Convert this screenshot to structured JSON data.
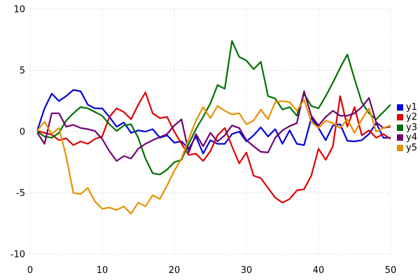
{
  "figure": {
    "background": "#ffffff"
  },
  "chart_data": {
    "type": "line",
    "title": "",
    "xlabel": "",
    "ylabel": "",
    "xlim": [
      0,
      50
    ],
    "ylim": [
      -10,
      10
    ],
    "x_ticks": [
      0,
      10,
      20,
      30,
      40,
      50
    ],
    "y_ticks": [
      10,
      5,
      0,
      -5,
      -10
    ],
    "x_tick_labels": [
      "0",
      "10",
      "20",
      "30",
      "40",
      "50"
    ],
    "y_tick_labels": [
      "10",
      "5",
      "0",
      "-5",
      "-10"
    ],
    "grid": true,
    "grid_style": "dotted",
    "grid_color": "#c4c4c4",
    "legend_position": "right-outside",
    "x": [
      1,
      2,
      3,
      4,
      5,
      6,
      7,
      8,
      9,
      10,
      11,
      12,
      13,
      14,
      15,
      16,
      17,
      18,
      19,
      20,
      21,
      22,
      23,
      24,
      25,
      26,
      27,
      28,
      29,
      30,
      31,
      32,
      33,
      34,
      35,
      36,
      37,
      38,
      39,
      40,
      41,
      42,
      43,
      44,
      45,
      46,
      47,
      48,
      49,
      50
    ],
    "series": [
      {
        "name": "y1",
        "color": "#0000dd",
        "values": [
          0.1,
          1.9,
          3.1,
          2.5,
          2.9,
          3.4,
          3.3,
          2.2,
          1.9,
          1.9,
          1.2,
          0.4,
          0.75,
          -0.1,
          0.1,
          0.0,
          0.2,
          -0.5,
          -0.3,
          -0.9,
          -0.8,
          -1.4,
          -0.4,
          -1.8,
          -0.7,
          -1.0,
          -1.0,
          -0.2,
          0.0,
          -0.8,
          -0.3,
          0.35,
          -0.4,
          0.2,
          -1.0,
          0.1,
          -1.0,
          -1.1,
          1.1,
          0.3,
          -0.7,
          0.5,
          0.6,
          -0.75,
          -0.8,
          -0.7,
          -0.2,
          0.7,
          -0.5,
          -0.5
        ]
      },
      {
        "name": "y2",
        "color": "#dd0000",
        "values": [
          0.05,
          -0.1,
          -0.25,
          -0.7,
          -0.55,
          -1.1,
          -0.8,
          -1.0,
          -0.6,
          -0.4,
          1.2,
          1.9,
          1.6,
          1.0,
          2.2,
          3.2,
          1.5,
          1.1,
          1.2,
          0.0,
          -1.0,
          -1.9,
          -1.8,
          -2.4,
          -1.6,
          -0.3,
          0.3,
          -1.2,
          -2.6,
          -1.7,
          -3.6,
          -3.8,
          -4.6,
          -5.4,
          -5.8,
          -5.5,
          -4.8,
          -4.7,
          -3.6,
          -1.4,
          -2.3,
          -1.2,
          2.9,
          0.4,
          2.0,
          -0.3,
          0.1,
          -0.5,
          -0.2,
          -0.6
        ]
      },
      {
        "name": "y3",
        "color": "#007000",
        "values": [
          0.0,
          -0.4,
          -0.5,
          -0.1,
          0.9,
          1.5,
          2.0,
          1.9,
          1.6,
          1.3,
          0.6,
          0.05,
          0.5,
          0.6,
          -0.5,
          -2.2,
          -3.4,
          -3.5,
          -3.1,
          -2.5,
          -2.3,
          -1.0,
          0.2,
          1.2,
          2.3,
          3.8,
          3.5,
          7.4,
          6.1,
          5.8,
          5.1,
          5.7,
          2.9,
          2.7,
          1.8,
          2.0,
          1.3,
          3.1,
          2.1,
          1.9,
          2.9,
          4.0,
          5.2,
          6.3,
          4.3,
          2.4,
          1.5,
          1.0,
          1.6,
          2.2
        ]
      },
      {
        "name": "y4",
        "color": "#700070",
        "values": [
          -0.1,
          -1.0,
          1.5,
          1.5,
          0.4,
          0.55,
          0.3,
          0.2,
          0.05,
          -0.6,
          -1.6,
          -2.4,
          -2.0,
          -2.2,
          -1.4,
          -1.0,
          -0.7,
          -0.45,
          -0.2,
          0.5,
          1.0,
          -1.7,
          -0.2,
          -1.2,
          -0.1,
          -0.8,
          -0.3,
          0.5,
          0.3,
          -0.7,
          -1.2,
          -1.65,
          -1.7,
          -0.5,
          0.1,
          0.45,
          0.7,
          3.3,
          1.3,
          0.5,
          1.2,
          1.7,
          1.3,
          1.3,
          1.5,
          2.0,
          2.75,
          0.75,
          0.3,
          0.4
        ]
      },
      {
        "name": "y5",
        "color": "#e89000",
        "values": [
          0.1,
          0.8,
          -0.2,
          0.3,
          -2.0,
          -5.0,
          -5.1,
          -4.6,
          -5.7,
          -6.3,
          -6.2,
          -6.4,
          -6.1,
          -6.7,
          -5.8,
          -6.1,
          -5.2,
          -5.5,
          -4.4,
          -3.2,
          -2.2,
          -0.6,
          0.9,
          2.0,
          1.1,
          2.1,
          1.7,
          1.4,
          1.5,
          0.6,
          0.9,
          1.8,
          1.0,
          2.4,
          2.5,
          2.4,
          1.7,
          2.6,
          0.8,
          0.3,
          0.9,
          0.7,
          0.3,
          1.0,
          -0.1,
          1.0,
          1.9,
          0.0,
          0.3,
          0.5
        ]
      }
    ]
  }
}
